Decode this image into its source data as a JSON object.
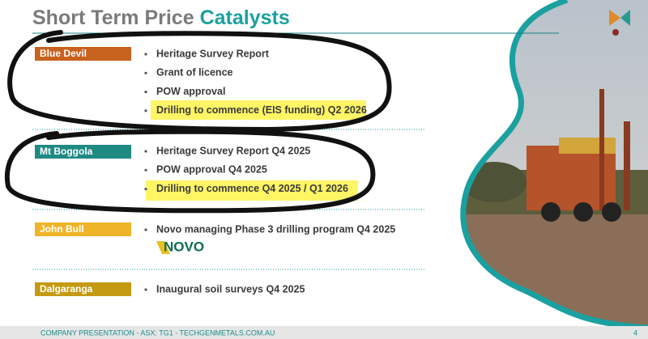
{
  "header": {
    "title": "Short Term Price",
    "title_accent": "Catalysts"
  },
  "projects": [
    {
      "name": "Blue Devil",
      "items": [
        "Heritage Survey Report",
        "Grant of licence",
        "POW approval",
        "Drilling to commence (EIS funding) Q2 2026"
      ]
    },
    {
      "name": "Mt Boggola",
      "items": [
        "Heritage Survey Report Q4 2025",
        "POW  approval Q4 2025",
        "Drilling to commence Q4 2025 / Q1 2026"
      ]
    },
    {
      "name": "John Bull",
      "items": [
        "Novo managing Phase 3 drilling program Q4 2025"
      ]
    },
    {
      "name": "Dalgaranga",
      "items": [
        "Inaugural soil surveys Q4 2025"
      ]
    }
  ],
  "novo_logo": "NOVO",
  "footer": {
    "text": "COMPANY PRESENTATION - ASX: TG1 - TECHGENMETALS.COM.AU",
    "page": "4"
  }
}
